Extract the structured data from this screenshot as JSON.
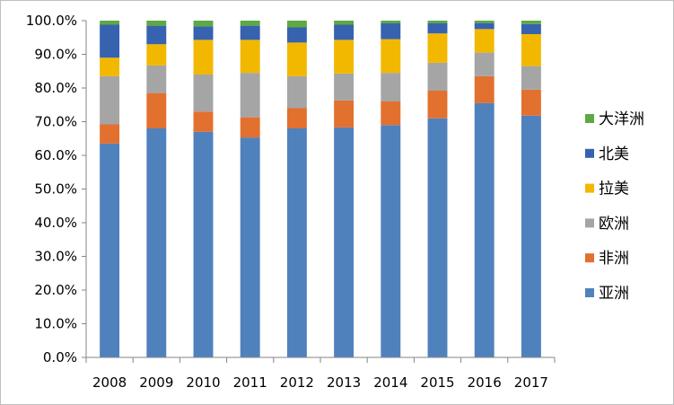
{
  "chart_data": {
    "type": "bar",
    "stacked": true,
    "percent": true,
    "categories": [
      "2008",
      "2009",
      "2010",
      "2011",
      "2012",
      "2013",
      "2014",
      "2015",
      "2016",
      "2017"
    ],
    "series": [
      {
        "name": "亚洲",
        "color": "#4F81BD",
        "values": [
          63.5,
          68.0,
          67.0,
          65.3,
          68.0,
          68.3,
          69.0,
          71.0,
          75.5,
          71.8
        ]
      },
      {
        "name": "非洲",
        "color": "#E2702E",
        "values": [
          5.7,
          10.5,
          6.0,
          6.0,
          6.0,
          8.0,
          7.0,
          8.2,
          8.0,
          7.7
        ]
      },
      {
        "name": "欧洲",
        "color": "#A5A5A5",
        "values": [
          14.3,
          8.2,
          11.0,
          13.2,
          9.5,
          8.0,
          8.5,
          8.3,
          7.0,
          7.0
        ]
      },
      {
        "name": "拉美",
        "color": "#F2B800",
        "values": [
          5.5,
          6.3,
          10.3,
          9.8,
          10.0,
          10.0,
          10.0,
          8.7,
          7.0,
          9.5
        ]
      },
      {
        "name": "北美",
        "color": "#3762B0",
        "values": [
          9.8,
          5.5,
          4.0,
          4.2,
          4.5,
          4.5,
          4.7,
          3.0,
          1.8,
          3.0
        ]
      },
      {
        "name": "大洋洲",
        "color": "#5DA942",
        "values": [
          1.2,
          1.5,
          1.7,
          1.5,
          2.0,
          1.2,
          0.8,
          0.8,
          0.7,
          1.0
        ]
      }
    ],
    "y_ticks": [
      "0.0%",
      "10.0%",
      "20.0%",
      "30.0%",
      "40.0%",
      "50.0%",
      "60.0%",
      "70.0%",
      "80.0%",
      "90.0%",
      "100.0%"
    ],
    "ylim": [
      0,
      100
    ],
    "grid": false,
    "legend_position": "right",
    "legend_order": [
      "大洋洲",
      "北美",
      "拉美",
      "欧洲",
      "非洲",
      "亚洲"
    ],
    "title": "",
    "xlabel": "",
    "ylabel": ""
  }
}
